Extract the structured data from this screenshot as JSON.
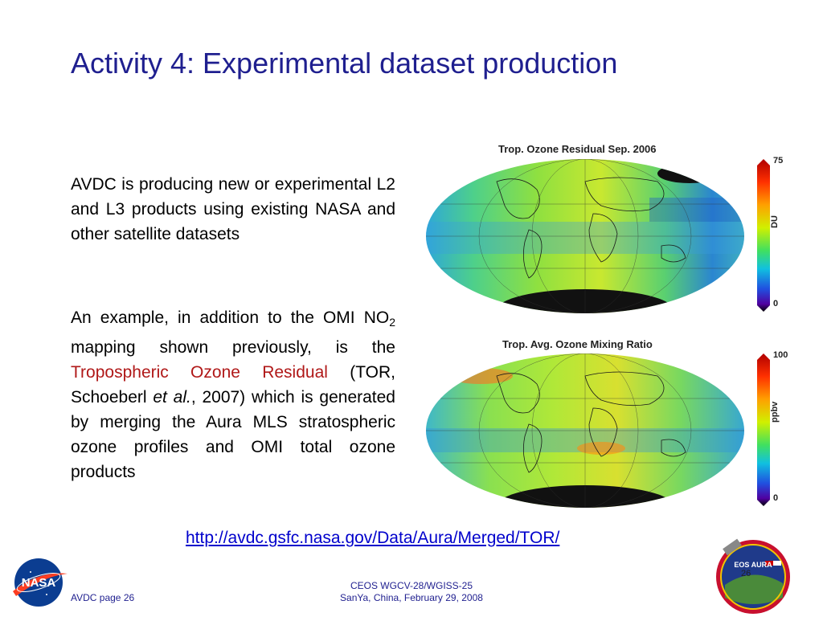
{
  "slide": {
    "title": "Activity 4: Experimental dataset production"
  },
  "content": {
    "paragraph1": "AVDC is producing new or experimental L2 and L3 products using existing NASA and other satellite datasets",
    "paragraph2_part1": "An example, in addition to the OMI NO",
    "paragraph2_sub": "2",
    "paragraph2_part2": " mapping shown previously, is the ",
    "paragraph2_highlight": "Tropospheric Ozone Residual",
    "paragraph2_part3": " (TOR, Schoeberl ",
    "paragraph2_italic": "et al.",
    "paragraph2_part4": ", 2007) which is generated by merging the Aura MLS stratospheric ozone profiles and OMI total ozone products",
    "highlight_color": "#b01818"
  },
  "maps": [
    {
      "title": "Trop. Ozone Residual Sep. 2006",
      "colorbar_max": "75",
      "colorbar_min": "0",
      "colorbar_unit": "DU"
    },
    {
      "title": "Trop. Avg. Ozone Mixing Ratio",
      "colorbar_max": "100",
      "colorbar_min": "0",
      "colorbar_unit": "ppbv"
    }
  ],
  "link": {
    "text": "http://avdc.gsfc.nasa.gov/Data/Aura/Merged/TOR/"
  },
  "footer": {
    "left": "AVDC page 26",
    "center_line1": "CEOS WGCV-28/WGISS-25",
    "center_line2": "SanYa, China, February 29, 2008",
    "page_number": "26"
  },
  "logos": {
    "nasa_text": "NASA",
    "aura_text": "EOS AURA"
  },
  "colors": {
    "title": "#1f1f8f",
    "link": "#0000cc",
    "footer": "#1f1f8f"
  }
}
